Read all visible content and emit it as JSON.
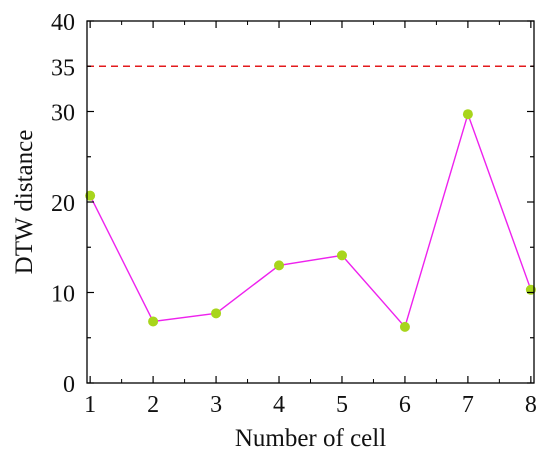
{
  "chart_data": {
    "type": "line",
    "title": "",
    "xlabel": "Number of cell",
    "ylabel": "DTW distance",
    "x": [
      1,
      2,
      3,
      4,
      5,
      6,
      7,
      8
    ],
    "series": [
      {
        "values": [
          20.7,
          6.8,
          7.7,
          13.0,
          14.1,
          6.2,
          29.7,
          10.3
        ]
      }
    ],
    "xlim": [
      0.95,
      8.05
    ],
    "ylim": [
      0,
      40
    ],
    "xticks": [
      "1",
      "2",
      "3",
      "4",
      "5",
      "6",
      "7",
      "8"
    ],
    "yticks": [
      "0",
      "10",
      "20",
      "30",
      "35",
      "40"
    ],
    "reference_line": {
      "value": 35,
      "style": "dashed",
      "color": "#e31a1c"
    },
    "line_color": "#ee22ee",
    "marker_color": "#a8d51c",
    "grid": false,
    "legend": false
  }
}
